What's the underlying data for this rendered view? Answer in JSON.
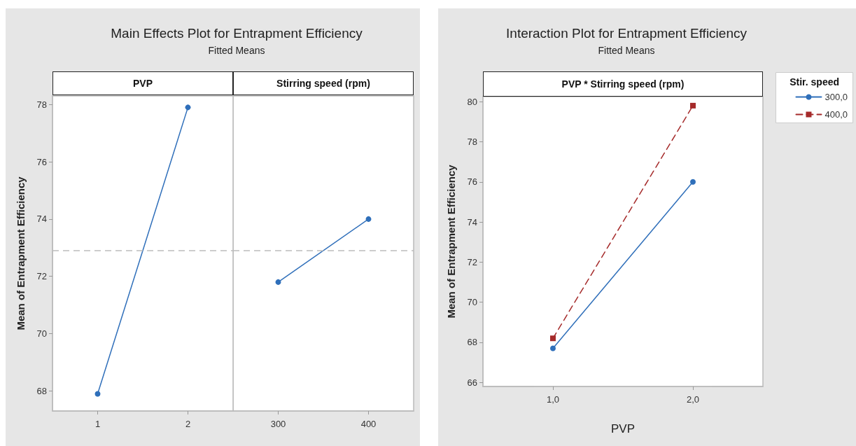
{
  "chart_data": [
    {
      "type": "line",
      "title": "Main Effects Plot for Entrapment Efficiency",
      "subtitle": "Fitted Means",
      "xlabel": "PVP",
      "ylabel": "Mean of Entrapment Efficiency",
      "categories": [
        "1",
        "2"
      ],
      "series": [
        {
          "color": "#2f6fba",
          "values": [
            67.9,
            77.9
          ]
        }
      ],
      "ylim": [
        67.3,
        78.3
      ],
      "yticks": [
        68,
        70,
        72,
        74,
        76,
        78
      ],
      "ref_lines": [
        {
          "axis": "y",
          "value": 72.9,
          "color": "#bdbdbd",
          "line_style": "dashed"
        }
      ],
      "marker": "circle",
      "line_style": "solid",
      "grid": false,
      "legend": false
    },
    {
      "type": "line",
      "xlabel": "Stirring speed (rpm)",
      "categories": [
        "300",
        "400"
      ],
      "series": [
        {
          "color": "#2f6fba",
          "values": [
            71.8,
            74.0
          ]
        }
      ],
      "ylim": [
        67.3,
        78.3
      ],
      "yticks": [
        68,
        70,
        72,
        74,
        76,
        78
      ],
      "tick_labels": "x",
      "ref_lines": [
        {
          "axis": "y",
          "value": 72.9,
          "color": "#bdbdbd",
          "line_style": "dashed"
        }
      ],
      "marker": "circle",
      "line_style": "solid",
      "grid": false,
      "legend": false
    },
    {
      "type": "line",
      "title": "Interaction Plot for Entrapment Efficiency",
      "subtitle": "Fitted Means",
      "xlabel": "PVP",
      "ylabel": "Mean of Entrapment Efficiency",
      "legend_title": "Stir. speed",
      "annotations": [
        "PVP * Stirring speed (rpm)"
      ],
      "categories": [
        "1,0",
        "2,0"
      ],
      "series": [
        {
          "name": "300,0",
          "color": "#2f6fba",
          "marker": "circle",
          "line_style": "solid",
          "values": [
            67.7,
            76.0
          ]
        },
        {
          "name": "400,0",
          "color": "#a52a2a",
          "marker": "square",
          "line_style": "dashed",
          "values": [
            68.2,
            79.8
          ]
        }
      ],
      "ylim": [
        65.8,
        80.25
      ],
      "yticks": [
        66,
        68,
        70,
        72,
        74,
        76,
        78,
        80
      ],
      "grid": false,
      "legend": "right"
    }
  ]
}
